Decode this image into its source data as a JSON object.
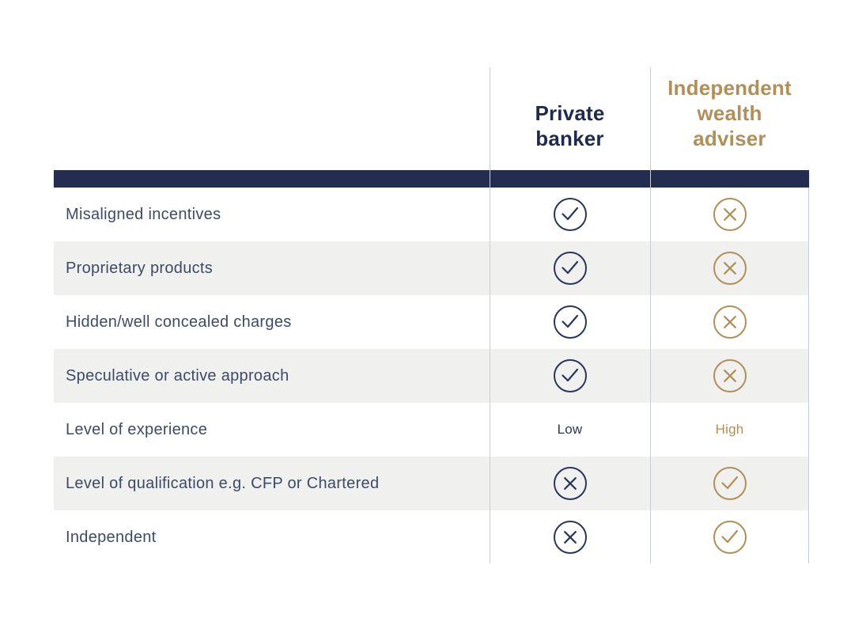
{
  "colors": {
    "navy_bar": "#222D4F",
    "navy_text": "#1E2A4E",
    "navy_icon": "#2A355A",
    "gold": "#B08F58",
    "row_label_text": "#3E4A66",
    "stripe_background": "#F0F0EF",
    "divider_line": "#C9CDD8",
    "page_background": "#FFFFFF"
  },
  "table": {
    "headers": {
      "private_banker": "Private\nbanker",
      "independent_wealth_adviser": "Independent\nwealth\nadviser"
    },
    "rows": [
      {
        "label": "Misaligned incentives",
        "private_banker": {
          "icon": "check-circle"
        },
        "independent_wealth_adviser": {
          "icon": "cross-circle"
        }
      },
      {
        "label": "Proprietary products",
        "private_banker": {
          "icon": "check-circle"
        },
        "independent_wealth_adviser": {
          "icon": "cross-circle"
        }
      },
      {
        "label": "Hidden/well concealed charges",
        "private_banker": {
          "icon": "check-circle"
        },
        "independent_wealth_adviser": {
          "icon": "cross-circle"
        }
      },
      {
        "label": "Speculative or active approach",
        "private_banker": {
          "icon": "check-circle"
        },
        "independent_wealth_adviser": {
          "icon": "cross-circle"
        }
      },
      {
        "label": "Level of experience",
        "private_banker": {
          "text": "Low"
        },
        "independent_wealth_adviser": {
          "text": "High"
        }
      },
      {
        "label": "Level of qualification e.g. CFP or Chartered",
        "private_banker": {
          "icon": "cross-circle"
        },
        "independent_wealth_adviser": {
          "icon": "check-circle"
        }
      },
      {
        "label": "Independent",
        "private_banker": {
          "icon": "cross-circle"
        },
        "independent_wealth_adviser": {
          "icon": "check-circle"
        }
      }
    ]
  },
  "chart_data": {
    "type": "table",
    "title": "",
    "columns": [
      "",
      "Private banker",
      "Independent wealth adviser"
    ],
    "rows": [
      [
        "Misaligned incentives",
        "yes",
        "no"
      ],
      [
        "Proprietary products",
        "yes",
        "no"
      ],
      [
        "Hidden/well concealed charges",
        "yes",
        "no"
      ],
      [
        "Speculative or active approach",
        "yes",
        "no"
      ],
      [
        "Level of experience",
        "Low",
        "High"
      ],
      [
        "Level of qualification e.g. CFP or Chartered",
        "no",
        "yes"
      ],
      [
        "Independent",
        "no",
        "yes"
      ]
    ],
    "legend": "check-circle = applies, cross-circle = does not apply",
    "layout": "striped comparison table, navy column = Private banker, gold column = Independent wealth adviser"
  }
}
